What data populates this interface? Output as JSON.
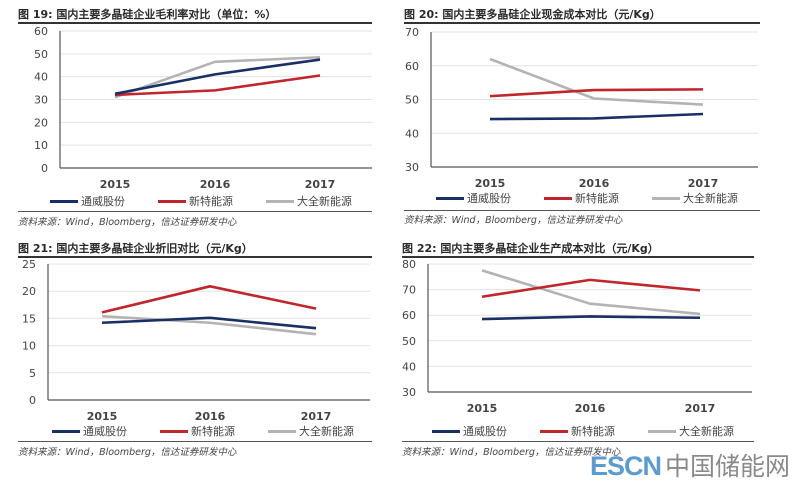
{
  "legend_colors": {
    "通威股份": "#1a2f66",
    "新特能源": "#c0262b",
    "大全新能源": "#b3b3b3"
  },
  "charts": [
    {
      "title": "图 19: 国内主要多晶硅企业毛利率对比（单位：%）",
      "source": "资料来源：Wind，Bloomberg，信达证券研发中心"
    },
    {
      "title": "图 20: 国内主要多晶硅企业现金成本对比（元/Kg）",
      "source": "资料来源：Wind，Bloomberg，信达证券研发中心"
    },
    {
      "title": "图 21: 国内主要多晶硅企业折旧对比（元/Kg）",
      "source": "资料来源：Wind，Bloomberg，信达证券研发中心"
    },
    {
      "title": "图 22: 国内主要多晶硅企业生产成本对比（元/Kg）",
      "source": "资料来源：Wind，Bloomberg，信达证券研发中心"
    }
  ],
  "legend": [
    "通威股份",
    "新特能源",
    "大全新能源"
  ],
  "watermark": {
    "latin": "ESCN",
    "cn": "中国储能网"
  },
  "chart_data": [
    {
      "type": "line",
      "title": "图 19: 国内主要多晶硅企业毛利率对比（单位：%）",
      "categories": [
        "2015",
        "2016",
        "2017"
      ],
      "ylim": [
        0,
        60
      ],
      "yticks": [
        0,
        10,
        20,
        30,
        40,
        50,
        60
      ],
      "grid": true,
      "legend": "bottom",
      "series": [
        {
          "name": "通威股份",
          "color": "#1a2f66",
          "values": [
            32.5,
            41,
            47.5
          ]
        },
        {
          "name": "新特能源",
          "color": "#c0262b",
          "values": [
            32,
            34,
            40.5
          ]
        },
        {
          "name": "大全新能源",
          "color": "#b3b3b3",
          "values": [
            31,
            46.5,
            48.5
          ]
        }
      ]
    },
    {
      "type": "line",
      "title": "图 20: 国内主要多晶硅企业现金成本对比（元/Kg）",
      "categories": [
        "2015",
        "2016",
        "2017"
      ],
      "ylim": [
        30,
        70
      ],
      "yticks": [
        30,
        40,
        50,
        60,
        70
      ],
      "grid": true,
      "legend": "bottom",
      "series": [
        {
          "name": "通威股份",
          "color": "#1a2f66",
          "values": [
            44.2,
            44.4,
            45.7
          ]
        },
        {
          "name": "新特能源",
          "color": "#c0262b",
          "values": [
            51,
            52.8,
            53
          ]
        },
        {
          "name": "大全新能源",
          "color": "#b3b3b3",
          "values": [
            62,
            50.3,
            48.5
          ]
        }
      ]
    },
    {
      "type": "line",
      "title": "图 21: 国内主要多晶硅企业折旧对比（元/Kg）",
      "categories": [
        "2015",
        "2016",
        "2017"
      ],
      "ylim": [
        0,
        25
      ],
      "yticks": [
        0,
        5,
        10,
        15,
        20,
        25
      ],
      "grid": true,
      "legend": "bottom",
      "series": [
        {
          "name": "通威股份",
          "color": "#1a2f66",
          "values": [
            14.2,
            15.1,
            13.2
          ]
        },
        {
          "name": "新特能源",
          "color": "#c0262b",
          "values": [
            16.1,
            20.9,
            16.8
          ]
        },
        {
          "name": "大全新能源",
          "color": "#b3b3b3",
          "values": [
            15.4,
            14.2,
            12.1
          ]
        }
      ]
    },
    {
      "type": "line",
      "title": "图 22: 国内主要多晶硅企业生产成本对比（元/Kg）",
      "categories": [
        "2015",
        "2016",
        "2017"
      ],
      "ylim": [
        30,
        80
      ],
      "yticks": [
        30,
        40,
        50,
        60,
        70,
        80
      ],
      "grid": true,
      "legend": "bottom",
      "series": [
        {
          "name": "通威股份",
          "color": "#1a2f66",
          "values": [
            58.5,
            59.5,
            59
          ]
        },
        {
          "name": "新特能源",
          "color": "#c0262b",
          "values": [
            67.2,
            73.8,
            69.7
          ]
        },
        {
          "name": "大全新能源",
          "color": "#b3b3b3",
          "values": [
            77.5,
            64.5,
            60.5
          ]
        }
      ]
    }
  ]
}
